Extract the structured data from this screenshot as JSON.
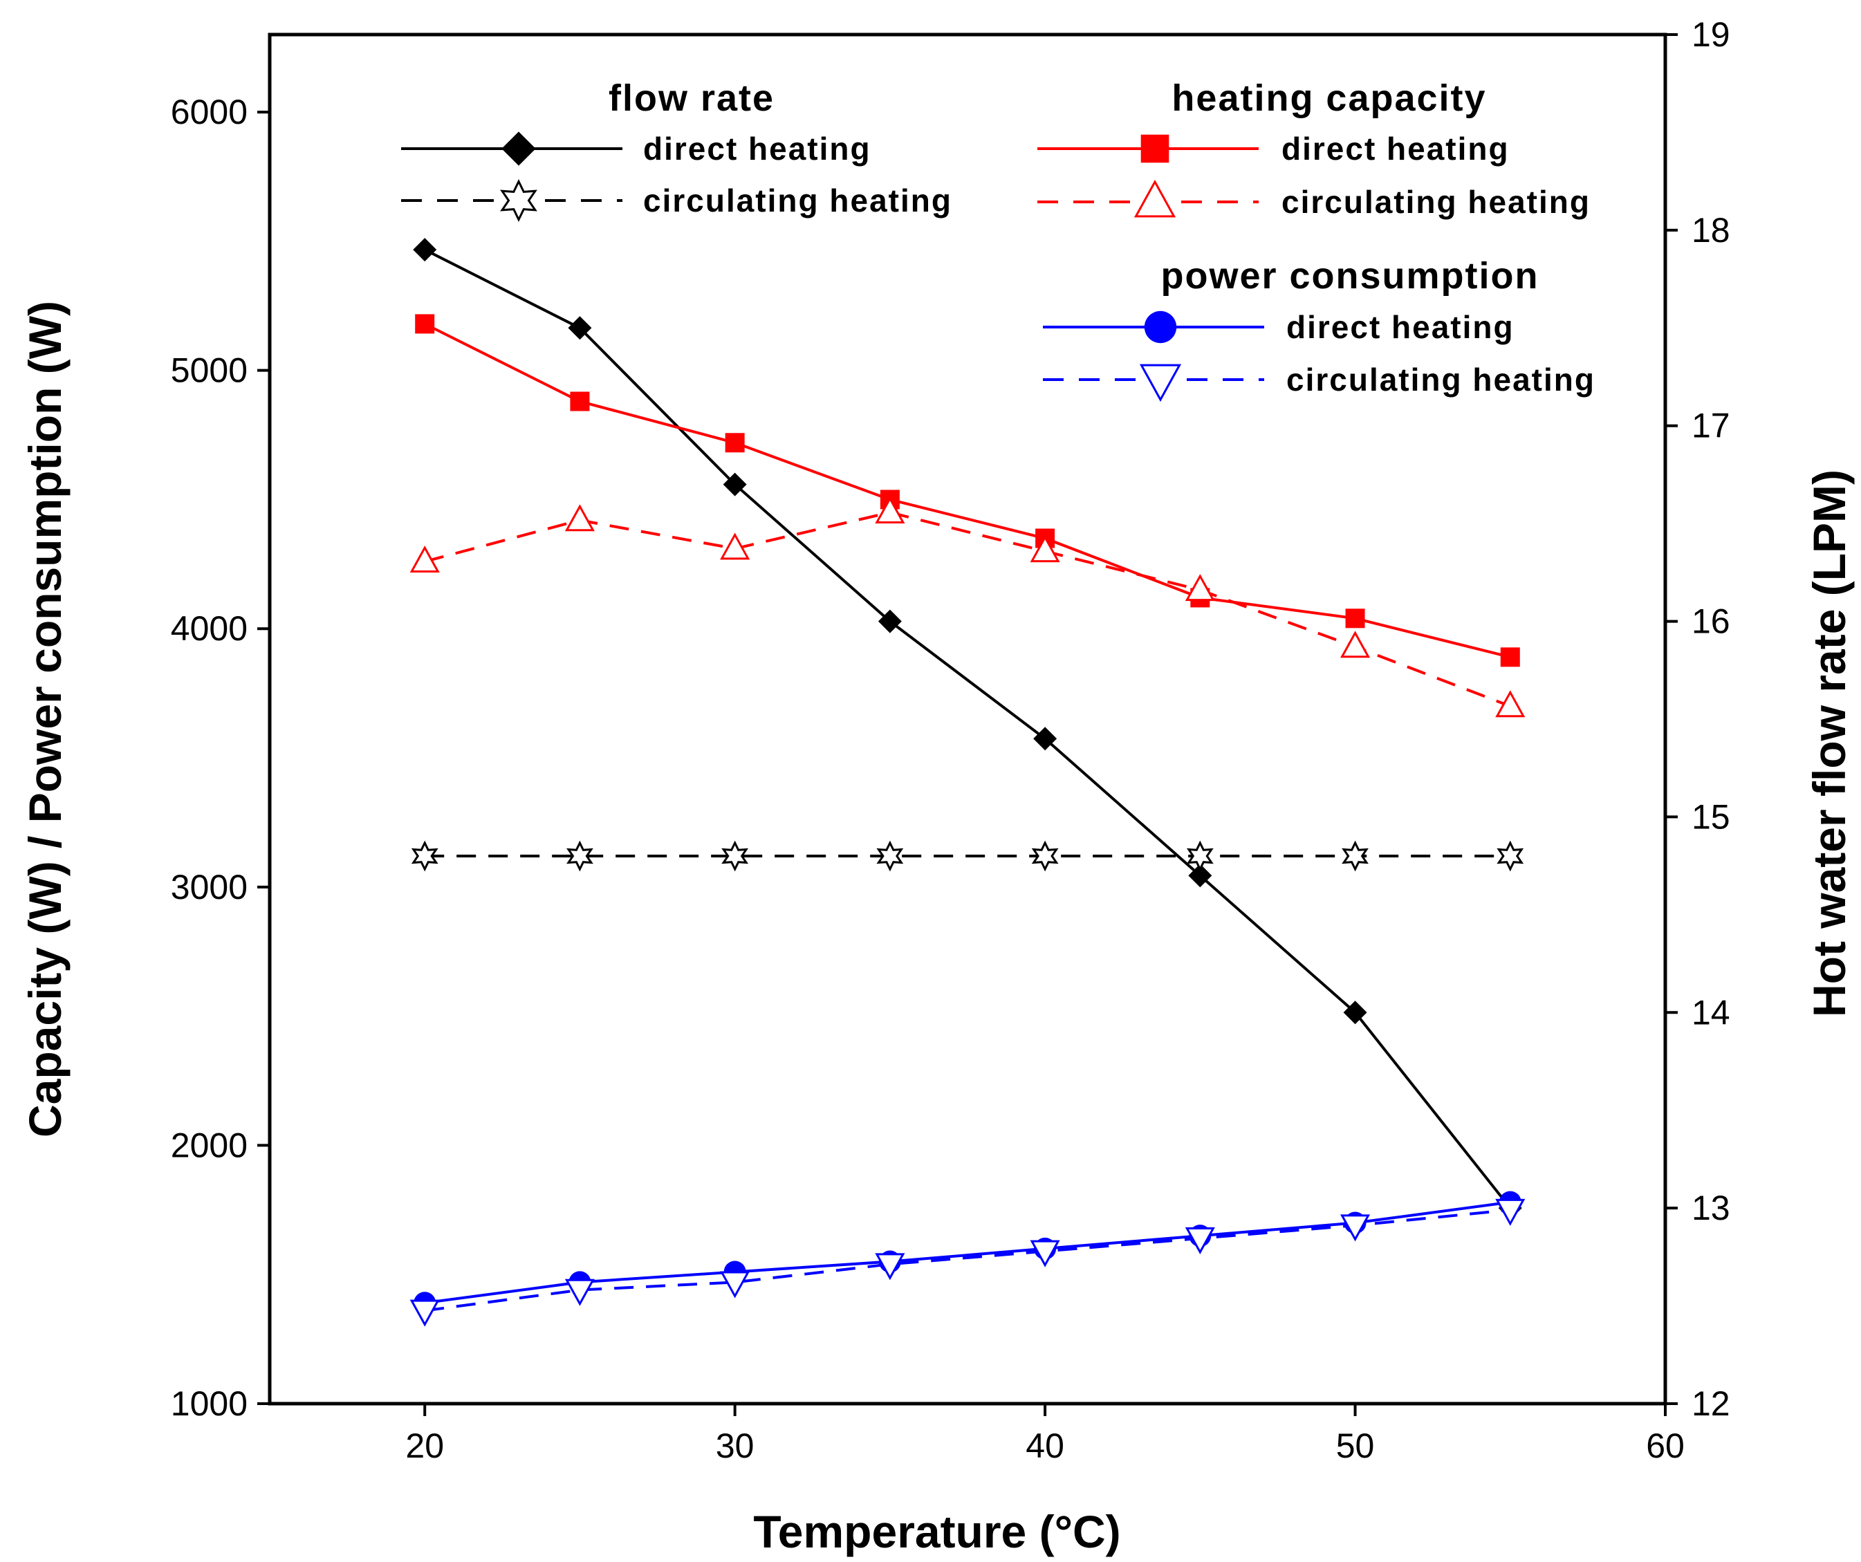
{
  "chart_data": {
    "type": "line",
    "x": [
      20,
      25,
      30,
      35,
      40,
      45,
      50,
      55
    ],
    "xlabel": "Temperature (°C)",
    "ylabel": "Capacity (W) / Power consumption (W)",
    "y2label": "Hot water flow rate (LPM)",
    "xlim": [
      15,
      60
    ],
    "ylim": [
      1000,
      6300
    ],
    "y2lim": [
      12,
      19
    ],
    "xticks": [
      "20",
      "30",
      "40",
      "50",
      "60"
    ],
    "yticks": [
      "1000",
      "2000",
      "3000",
      "4000",
      "5000",
      "6000"
    ],
    "y2ticks": [
      "12",
      "13",
      "14",
      "15",
      "16",
      "17",
      "18",
      "19"
    ],
    "legend_groups": [
      {
        "title": "flow rate",
        "entries": [
          "direct heating",
          "circulating heating"
        ]
      },
      {
        "title": "heating capacity",
        "entries": [
          "direct heating",
          "circulating heating"
        ]
      },
      {
        "title": "power consumption",
        "entries": [
          "direct heating",
          "circulating heating"
        ]
      }
    ],
    "series": [
      {
        "name": "flow rate - direct heating",
        "axis": "right",
        "color": "#000000",
        "dash": false,
        "marker": "diamond",
        "values": [
          17.9,
          17.5,
          16.7,
          16.0,
          15.4,
          14.7,
          14.0,
          13.0
        ]
      },
      {
        "name": "flow rate - circulating heating",
        "axis": "right",
        "color": "#000000",
        "dash": true,
        "marker": "star-open",
        "values": [
          14.8,
          14.8,
          14.8,
          14.8,
          14.8,
          14.8,
          14.8,
          14.8
        ]
      },
      {
        "name": "heating capacity - direct heating",
        "axis": "left",
        "color": "#ff0000",
        "dash": false,
        "marker": "square",
        "values": [
          5180,
          4880,
          4720,
          4500,
          4350,
          4120,
          4040,
          3890
        ]
      },
      {
        "name": "heating capacity - circulating heating",
        "axis": "left",
        "color": "#ff0000",
        "dash": true,
        "marker": "triangle-up-open",
        "values": [
          4260,
          4420,
          4310,
          4450,
          4300,
          4150,
          3930,
          3700
        ]
      },
      {
        "name": "power consumption - direct heating",
        "axis": "left",
        "color": "#0000ff",
        "dash": false,
        "marker": "circle",
        "values": [
          1390,
          1470,
          1510,
          1550,
          1600,
          1650,
          1700,
          1780
        ]
      },
      {
        "name": "power consumption - circulating heating",
        "axis": "left",
        "color": "#0000ff",
        "dash": true,
        "marker": "triangle-down-open",
        "values": [
          1360,
          1440,
          1470,
          1540,
          1590,
          1640,
          1690,
          1750
        ]
      }
    ]
  }
}
